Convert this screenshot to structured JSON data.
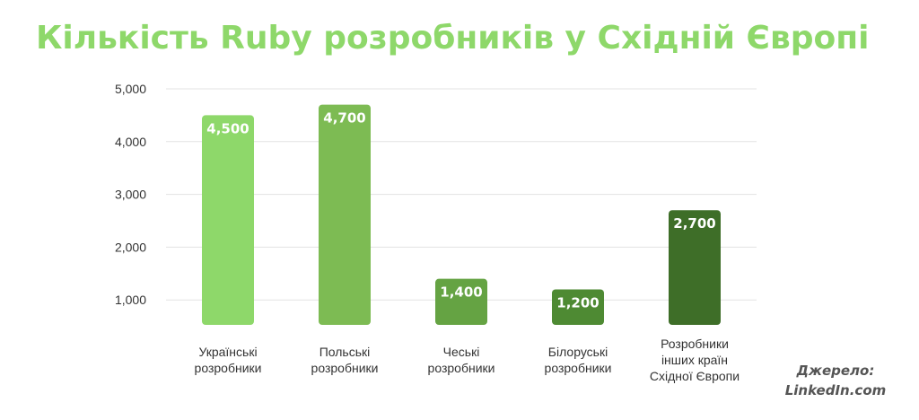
{
  "chart_data": {
    "type": "bar",
    "title": "Кількість Ruby розробників у Східній Європі",
    "categories": [
      [
        "Українські",
        "розробники"
      ],
      [
        "Польські",
        "розробники"
      ],
      [
        "Чеські",
        "розробники"
      ],
      [
        "Білоруські",
        "розробники"
      ],
      [
        "Розробники",
        "інших країн",
        "Східної Європи"
      ]
    ],
    "values": [
      4500,
      4700,
      1400,
      1200,
      2700
    ],
    "data_labels": [
      "4,500",
      "4,700",
      "1,400",
      "1,200",
      "2,700"
    ],
    "colors": [
      "#8ed86a",
      "#7dbb53",
      "#65a343",
      "#4e8a33",
      "#3e6e28"
    ],
    "ylim": [
      0,
      5000
    ],
    "yticks": [
      1000,
      2000,
      3000,
      4000,
      5000
    ],
    "ytick_labels": [
      "1,000",
      "2,000",
      "3,000",
      "4,000",
      "5,000"
    ],
    "grid": true,
    "xlabel": "",
    "ylabel": ""
  },
  "source": {
    "label": "Джерело:",
    "value": "LinkedIn.com"
  }
}
